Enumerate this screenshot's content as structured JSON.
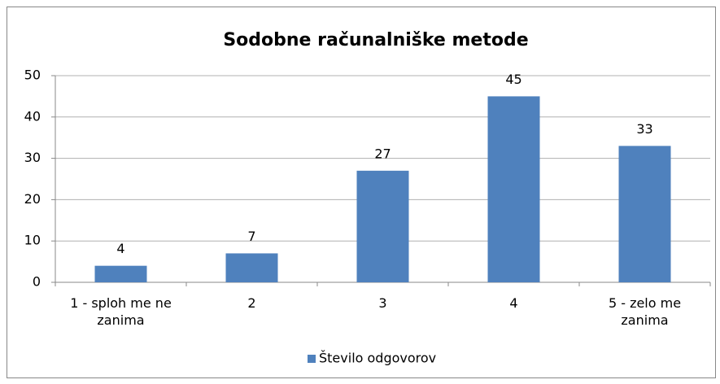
{
  "chart_data": {
    "type": "bar",
    "title": "Sodobne računalniške metode",
    "categories": [
      "1 - sploh me ne zanima",
      "2",
      "3",
      "4",
      "5 - zelo me zanima"
    ],
    "series": [
      {
        "name": "Število odgovorov",
        "color": "#4f81bd",
        "values": [
          4,
          7,
          27,
          45,
          33
        ]
      }
    ],
    "ylim": [
      0,
      50
    ],
    "yticks": [
      0,
      10,
      20,
      30,
      40,
      50
    ],
    "grid": true,
    "legend": "bottom"
  }
}
